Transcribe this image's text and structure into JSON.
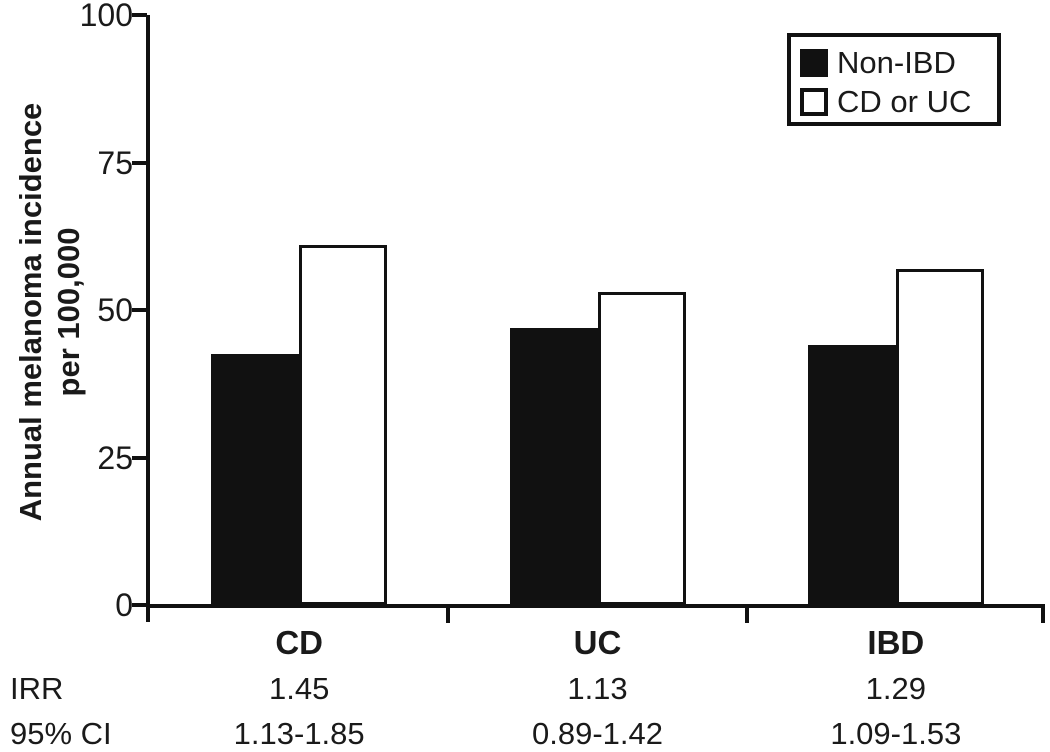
{
  "chart_data": {
    "type": "bar",
    "title": "",
    "ylabel_line1": "Annual melanoma incidence",
    "ylabel_line2": "per 100,000",
    "ylim": [
      0,
      100
    ],
    "yticks": [
      0,
      25,
      50,
      75,
      100
    ],
    "grid": false,
    "legend_position": "top-right",
    "categories": [
      "CD",
      "UC",
      "IBD"
    ],
    "series": [
      {
        "name": "Non-IBD",
        "style": "filled-black",
        "values": [
          42.5,
          47,
          44
        ]
      },
      {
        "name": "CD or UC",
        "style": "open-white",
        "values": [
          61,
          53,
          57
        ]
      }
    ],
    "annotations": {
      "rows": [
        {
          "label": "IRR",
          "values": [
            "1.45",
            "1.13",
            "1.29"
          ]
        },
        {
          "label": "95% CI",
          "values": [
            "1.13-1.85",
            "0.89-1.42",
            "1.09-1.53"
          ]
        }
      ]
    }
  },
  "colors": {
    "bar_filled": "#111111",
    "bar_open": "#ffffff",
    "axis": "#111111",
    "text": "#1a1a1a",
    "background": "#ffffff"
  }
}
